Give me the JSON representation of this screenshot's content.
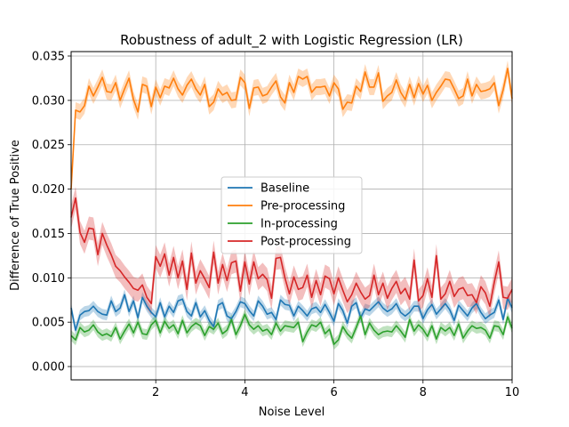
{
  "chart_data": {
    "type": "line",
    "title": "Robustness of adult_2 with Logistic Regression (LR)",
    "xlabel": "Noise Level",
    "ylabel": "Difference of True Positive",
    "xlim": [
      0.1,
      10
    ],
    "ylim": [
      -0.0015,
      0.0355
    ],
    "xticks": [
      2,
      4,
      6,
      8,
      10
    ],
    "xtick_labels": [
      "2",
      "4",
      "6",
      "8",
      "10"
    ],
    "yticks": [
      0.0,
      0.005,
      0.01,
      0.015,
      0.02,
      0.025,
      0.03,
      0.035
    ],
    "ytick_labels": [
      "0.000",
      "0.005",
      "0.010",
      "0.015",
      "0.020",
      "0.025",
      "0.030",
      "0.035"
    ],
    "grid": true,
    "legend_position": "center",
    "x": [
      0.1,
      0.2,
      0.3,
      0.4,
      0.5,
      0.6,
      0.7,
      0.8,
      0.9,
      1.0,
      1.1,
      1.2,
      1.3,
      1.4,
      1.5,
      1.6,
      1.7,
      1.8,
      1.9,
      2.0,
      2.1,
      2.2,
      2.3,
      2.4,
      2.5,
      2.6,
      2.7,
      2.8,
      2.9,
      3.0,
      3.1,
      3.2,
      3.3,
      3.4,
      3.5,
      3.6,
      3.7,
      3.8,
      3.9,
      4.0,
      4.1,
      4.2,
      4.3,
      4.4,
      4.5,
      4.6,
      4.7,
      4.8,
      4.9,
      5.0,
      5.1,
      5.2,
      5.3,
      5.4,
      5.5,
      5.6,
      5.7,
      5.8,
      5.9,
      6.0,
      6.1,
      6.2,
      6.3,
      6.4,
      6.5,
      6.6,
      6.7,
      6.8,
      6.9,
      7.0,
      7.1,
      7.2,
      7.3,
      7.4,
      7.5,
      7.6,
      7.7,
      7.8,
      7.9,
      8.0,
      8.1,
      8.2,
      8.3,
      8.4,
      8.5,
      8.6,
      8.7,
      8.8,
      8.9,
      9.0,
      9.1,
      9.2,
      9.3,
      9.4,
      9.5,
      9.6,
      9.7,
      9.8,
      9.9,
      10.0
    ],
    "series": [
      {
        "name": "Baseline",
        "color": "#1f77b4",
        "band": 0.0006,
        "values": [
          0.0066,
          0.0041,
          0.0058,
          0.0062,
          0.0063,
          0.0068,
          0.0062,
          0.0059,
          0.0058,
          0.0074,
          0.0062,
          0.0066,
          0.0081,
          0.0062,
          0.0074,
          0.0055,
          0.0078,
          0.0068,
          0.0061,
          0.0056,
          0.0072,
          0.0056,
          0.0068,
          0.0061,
          0.0074,
          0.0076,
          0.0062,
          0.0057,
          0.0072,
          0.0056,
          0.0063,
          0.0052,
          0.0045,
          0.0069,
          0.0072,
          0.0057,
          0.0054,
          0.0062,
          0.0073,
          0.0071,
          0.0063,
          0.0057,
          0.0074,
          0.0068,
          0.0059,
          0.0061,
          0.0053,
          0.0075,
          0.007,
          0.0069,
          0.0057,
          0.0068,
          0.0063,
          0.0057,
          0.0065,
          0.0067,
          0.0061,
          0.007,
          0.0061,
          0.0051,
          0.0071,
          0.0063,
          0.0049,
          0.0068,
          0.0072,
          0.0055,
          0.0065,
          0.0063,
          0.0068,
          0.0073,
          0.0066,
          0.0062,
          0.0065,
          0.0071,
          0.0061,
          0.0057,
          0.0061,
          0.0068,
          0.0068,
          0.0054,
          0.0064,
          0.007,
          0.0059,
          0.0065,
          0.0071,
          0.0064,
          0.0052,
          0.0069,
          0.0063,
          0.0057,
          0.0066,
          0.0071,
          0.0061,
          0.0054,
          0.0058,
          0.0061,
          0.0075,
          0.0053,
          0.0077,
          0.0066
        ]
      },
      {
        "name": "Pre-processing",
        "color": "#ff7f0e",
        "band": 0.0009,
        "values": [
          0.02,
          0.0289,
          0.0287,
          0.0294,
          0.0316,
          0.0305,
          0.0315,
          0.0326,
          0.031,
          0.0309,
          0.032,
          0.03,
          0.0313,
          0.0325,
          0.0301,
          0.0287,
          0.0318,
          0.0316,
          0.0293,
          0.0315,
          0.0303,
          0.0316,
          0.0314,
          0.0325,
          0.0313,
          0.0306,
          0.0317,
          0.0324,
          0.0313,
          0.0306,
          0.0318,
          0.0293,
          0.0298,
          0.0313,
          0.0306,
          0.0309,
          0.03,
          0.0301,
          0.0326,
          0.032,
          0.0291,
          0.0314,
          0.0315,
          0.0305,
          0.0307,
          0.0315,
          0.0322,
          0.0304,
          0.0297,
          0.032,
          0.0309,
          0.0327,
          0.0324,
          0.0327,
          0.0309,
          0.0315,
          0.0315,
          0.0316,
          0.0305,
          0.032,
          0.0313,
          0.029,
          0.0298,
          0.0297,
          0.0316,
          0.031,
          0.0332,
          0.0315,
          0.0315,
          0.0331,
          0.0299,
          0.0305,
          0.0309,
          0.0323,
          0.0309,
          0.0301,
          0.0318,
          0.0303,
          0.0319,
          0.0307,
          0.0317,
          0.03,
          0.0309,
          0.0316,
          0.0324,
          0.0323,
          0.0313,
          0.0302,
          0.0305,
          0.0324,
          0.0305,
          0.0318,
          0.031,
          0.0311,
          0.0313,
          0.032,
          0.0294,
          0.0312,
          0.0336,
          0.0302
        ]
      },
      {
        "name": "In-processing",
        "color": "#2ca02c",
        "band": 0.0006,
        "values": [
          0.0035,
          0.003,
          0.0044,
          0.0039,
          0.0041,
          0.0047,
          0.0039,
          0.0035,
          0.0037,
          0.0034,
          0.0044,
          0.0031,
          0.004,
          0.0048,
          0.0038,
          0.005,
          0.0037,
          0.0036,
          0.0047,
          0.0052,
          0.0038,
          0.0051,
          0.0043,
          0.0047,
          0.0037,
          0.0052,
          0.0038,
          0.0045,
          0.0049,
          0.0046,
          0.0035,
          0.0045,
          0.0042,
          0.0049,
          0.0037,
          0.0041,
          0.0053,
          0.0036,
          0.0046,
          0.0059,
          0.0047,
          0.0042,
          0.0046,
          0.004,
          0.0042,
          0.0036,
          0.0049,
          0.004,
          0.0046,
          0.0045,
          0.0044,
          0.005,
          0.0028,
          0.0039,
          0.0047,
          0.0045,
          0.005,
          0.0037,
          0.0042,
          0.0025,
          0.003,
          0.0045,
          0.0037,
          0.0032,
          0.0044,
          0.0057,
          0.0036,
          0.0049,
          0.0041,
          0.0036,
          0.0039,
          0.004,
          0.0039,
          0.0046,
          0.004,
          0.0033,
          0.0053,
          0.004,
          0.0047,
          0.0042,
          0.0034,
          0.0046,
          0.0031,
          0.0044,
          0.004,
          0.0044,
          0.0035,
          0.0048,
          0.0032,
          0.004,
          0.0046,
          0.0043,
          0.0044,
          0.0041,
          0.0032,
          0.0046,
          0.0045,
          0.0036,
          0.0056,
          0.0043
        ]
      },
      {
        "name": "Post-processing",
        "color": "#d62728",
        "band": 0.0013,
        "values": [
          0.0168,
          0.019,
          0.0151,
          0.014,
          0.0156,
          0.0155,
          0.0126,
          0.015,
          0.0137,
          0.0126,
          0.0113,
          0.0108,
          0.0101,
          0.0095,
          0.0088,
          0.0086,
          0.0092,
          0.0078,
          0.0071,
          0.0124,
          0.0113,
          0.0127,
          0.0103,
          0.0123,
          0.01,
          0.0119,
          0.0087,
          0.0128,
          0.0094,
          0.0108,
          0.0099,
          0.0089,
          0.0129,
          0.0094,
          0.0115,
          0.0097,
          0.0117,
          0.0119,
          0.0085,
          0.0118,
          0.0093,
          0.0118,
          0.0099,
          0.0104,
          0.0098,
          0.0077,
          0.0122,
          0.0123,
          0.01,
          0.0082,
          0.0101,
          0.0087,
          0.0089,
          0.0103,
          0.0078,
          0.0097,
          0.0081,
          0.0102,
          0.0099,
          0.0082,
          0.01,
          0.0086,
          0.0073,
          0.0081,
          0.0094,
          0.0084,
          0.0076,
          0.008,
          0.0103,
          0.0081,
          0.0094,
          0.0077,
          0.0088,
          0.0096,
          0.0082,
          0.0088,
          0.0076,
          0.012,
          0.0074,
          0.008,
          0.0099,
          0.0078,
          0.0125,
          0.0076,
          0.0082,
          0.0096,
          0.0079,
          0.0087,
          0.0089,
          0.008,
          0.0081,
          0.0072,
          0.009,
          0.0083,
          0.0068,
          0.0095,
          0.0118,
          0.0078,
          0.0077,
          0.0087
        ]
      }
    ]
  }
}
